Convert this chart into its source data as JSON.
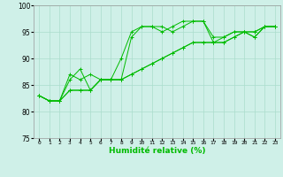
{
  "xlabel": "Humidité relative (%)",
  "xlim": [
    -0.5,
    23.5
  ],
  "ylim": [
    75,
    100
  ],
  "yticks": [
    75,
    80,
    85,
    90,
    95,
    100
  ],
  "xticks": [
    0,
    1,
    2,
    3,
    4,
    5,
    6,
    7,
    8,
    9,
    10,
    11,
    12,
    13,
    14,
    15,
    16,
    17,
    18,
    19,
    20,
    21,
    22,
    23
  ],
  "xticklabels": [
    "0",
    "1",
    "2",
    "3",
    "4",
    "5",
    "6",
    "7",
    "8",
    "9",
    "10",
    "11",
    "12",
    "13",
    "14",
    "15",
    "16",
    "17",
    "18",
    "19",
    "20",
    "21",
    "22",
    "23"
  ],
  "background_color": "#cff0e8",
  "grid_color": "#aaddcc",
  "line_color": "#00bb00",
  "lines": [
    [
      83,
      82,
      82,
      87,
      86,
      87,
      86,
      86,
      86,
      94,
      96,
      96,
      96,
      95,
      96,
      97,
      97,
      94,
      94,
      95,
      95,
      94,
      96,
      96
    ],
    [
      83,
      82,
      82,
      86,
      88,
      84,
      86,
      86,
      90,
      95,
      96,
      96,
      95,
      96,
      97,
      97,
      97,
      93,
      93,
      94,
      95,
      94,
      96,
      96
    ],
    [
      83,
      82,
      82,
      84,
      84,
      84,
      86,
      86,
      86,
      87,
      88,
      89,
      90,
      91,
      92,
      93,
      93,
      93,
      93,
      94,
      95,
      95,
      96,
      96
    ],
    [
      83,
      82,
      82,
      84,
      84,
      84,
      86,
      86,
      86,
      87,
      88,
      89,
      90,
      91,
      92,
      93,
      93,
      93,
      94,
      95,
      95,
      95,
      96,
      96
    ]
  ]
}
